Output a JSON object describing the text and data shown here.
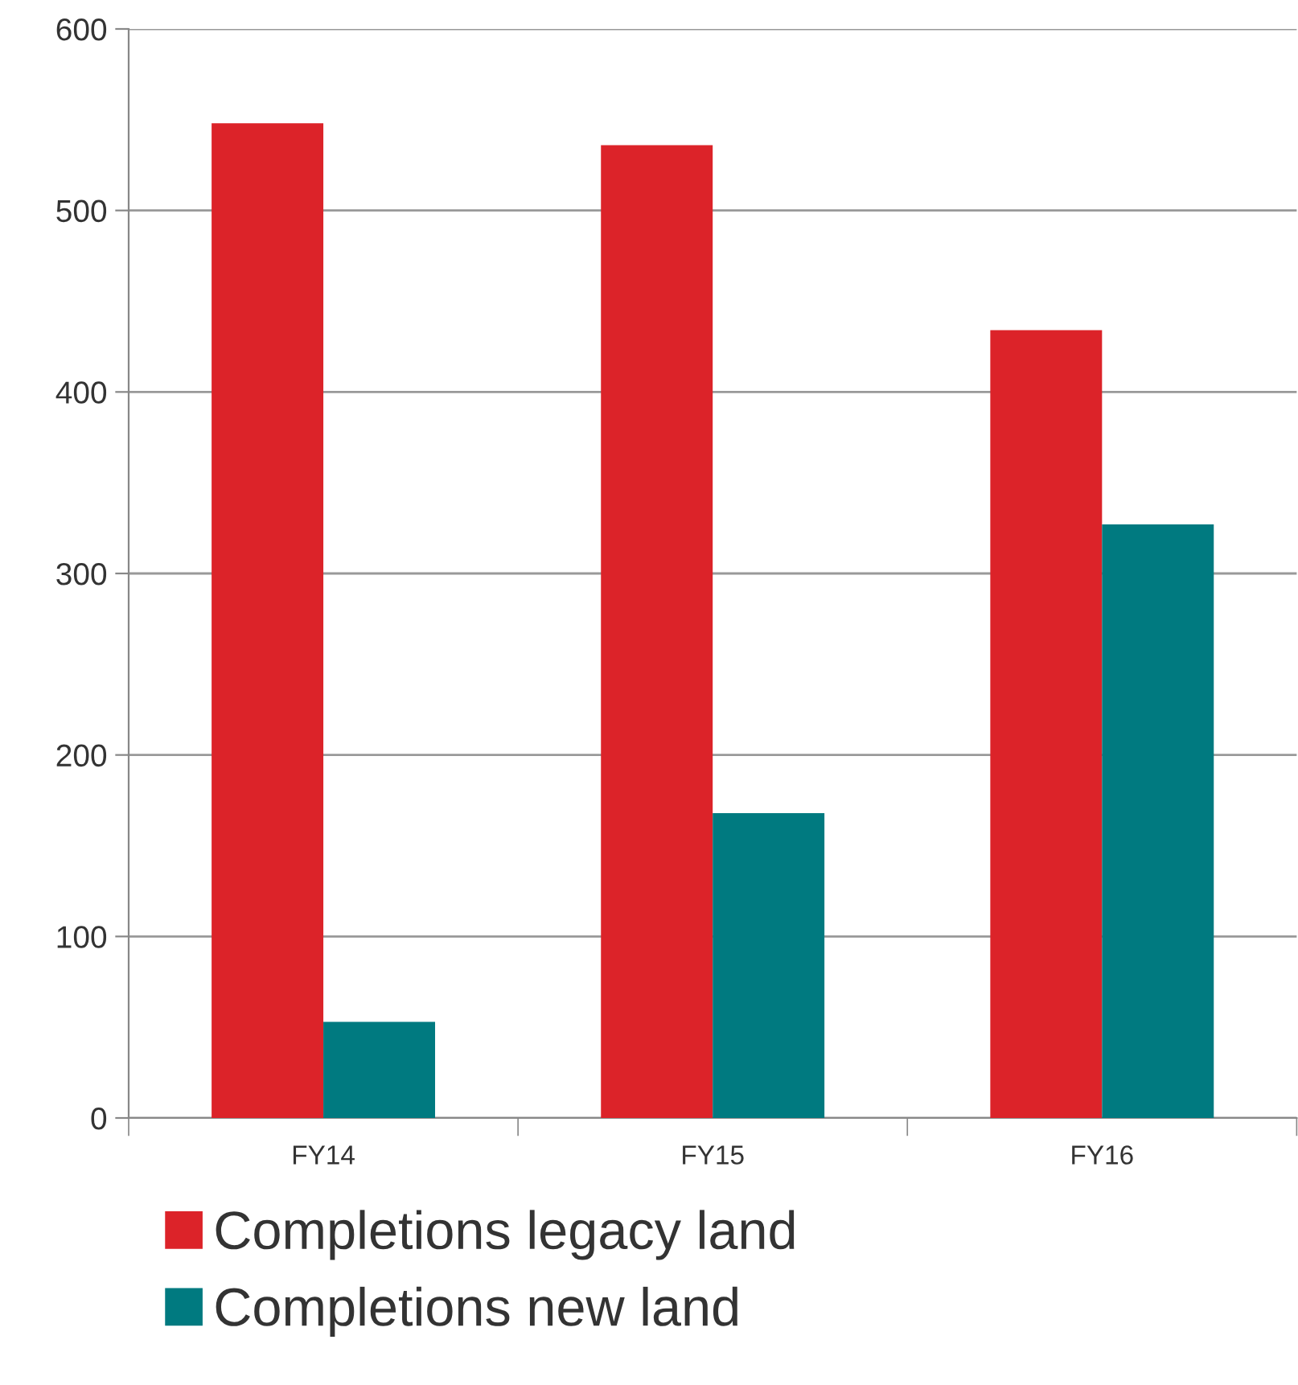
{
  "chart_data": {
    "type": "bar",
    "categories": [
      "FY14",
      "FY15",
      "FY16"
    ],
    "series": [
      {
        "name": "Completions legacy land",
        "color": "#dc2329",
        "values": [
          548,
          536,
          434
        ]
      },
      {
        "name": "Completions new land",
        "color": "#007a80",
        "values": [
          53,
          168,
          327
        ]
      }
    ],
    "ylim": [
      0,
      600
    ],
    "yticks": [
      0,
      100,
      200,
      300,
      400,
      500,
      600
    ],
    "grid": "y",
    "legend": "bottom left"
  }
}
